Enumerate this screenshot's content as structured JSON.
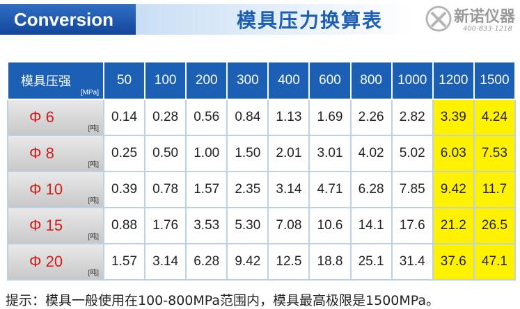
{
  "header": {
    "tag": "Conversion",
    "title": "模具压力换算表",
    "logo": {
      "name": "新诺仪器",
      "phone": "400-833-1218"
    }
  },
  "table": {
    "corner": {
      "label": "模具压强",
      "unit": "[MPa]"
    },
    "columns": [
      50,
      100,
      200,
      300,
      400,
      600,
      800,
      1000,
      1200,
      1500
    ],
    "rows": [
      {
        "label": "Φ 6",
        "unit": "[吨]",
        "cells": [
          "0.14",
          "0.28",
          "0.56",
          "0.84",
          "1.13",
          "1.69",
          "2.26",
          "2.82",
          "3.39",
          "4.24"
        ]
      },
      {
        "label": "Φ 8",
        "unit": "[吨]",
        "cells": [
          "0.25",
          "0.50",
          "1.00",
          "1.50",
          "2.01",
          "3.01",
          "4.02",
          "5.02",
          "6.03",
          "7.53"
        ]
      },
      {
        "label": "Φ 10",
        "unit": "[吨]",
        "cells": [
          "0.39",
          "0.78",
          "1.57",
          "2.35",
          "3.14",
          "4.71",
          "6.28",
          "7.85",
          "9.42",
          "11.7"
        ]
      },
      {
        "label": "Φ 15",
        "unit": "[吨]",
        "cells": [
          "0.88",
          "1.76",
          "3.53",
          "5.30",
          "7.08",
          "10.6",
          "14.1",
          "17.6",
          "21.2",
          "26.5"
        ]
      },
      {
        "label": "Φ 20",
        "unit": "[吨]",
        "cells": [
          "1.57",
          "3.14",
          "6.28",
          "9.42",
          "12.5",
          "18.8",
          "25.1",
          "31.4",
          "37.6",
          "47.1"
        ]
      }
    ]
  },
  "footer": "提示：模具一般使用在100-800MPa范围内，模具最高极限是1500MPa。"
}
